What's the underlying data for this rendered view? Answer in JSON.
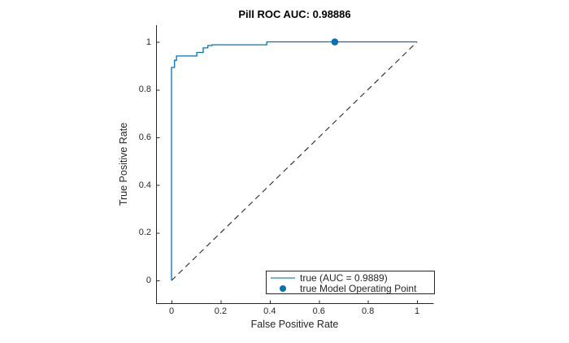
{
  "figure": {
    "background": "#ffffff"
  },
  "chart_data": {
    "type": "line",
    "subtype": "roc_curve",
    "title": "Pill ROC AUC: 0.98886",
    "xlabel": "False Positive Rate",
    "ylabel": "True Positive Rate",
    "xlim": [
      -0.063,
      1.066
    ],
    "ylim": [
      -0.095,
      1.07
    ],
    "grid": false,
    "axis_color": "#262626",
    "x_ticks": {
      "values": [
        0,
        0.2,
        0.4,
        0.6,
        0.8,
        1
      ],
      "labels": [
        "0",
        "0.2",
        "0.4",
        "0.6",
        "0.8",
        "1"
      ]
    },
    "y_ticks": {
      "values": [
        0,
        0.2,
        0.4,
        0.6,
        0.8,
        1
      ],
      "labels": [
        "0",
        "0.2",
        "0.4",
        "0.6",
        "0.8",
        "1"
      ]
    },
    "series": [
      {
        "name": "true (AUC = 0.9889)",
        "color": "#0072BD",
        "line_style": "solid",
        "auc": 0.9889,
        "points": [
          [
            0,
            0
          ],
          [
            0,
            0.893
          ],
          [
            0.012,
            0.893
          ],
          [
            0.012,
            0.923
          ],
          [
            0.02,
            0.923
          ],
          [
            0.02,
            0.941
          ],
          [
            0.103,
            0.941
          ],
          [
            0.103,
            0.956
          ],
          [
            0.129,
            0.956
          ],
          [
            0.129,
            0.975
          ],
          [
            0.148,
            0.975
          ],
          [
            0.148,
            0.985
          ],
          [
            0.165,
            0.985
          ],
          [
            0.165,
            0.988
          ],
          [
            0.388,
            0.988
          ],
          [
            0.388,
            1
          ],
          [
            1,
            1
          ]
        ]
      }
    ],
    "reference_line": {
      "name": "chance diagonal",
      "color": "#262626",
      "line_style": "dashed",
      "points": [
        [
          0,
          0
        ],
        [
          1,
          1
        ]
      ]
    },
    "operating_point": {
      "label": "true Model Operating Point",
      "x": 0.665,
      "y": 1,
      "color": "#0072BD",
      "marker": "circle"
    },
    "legend": {
      "position": "southeast",
      "border_color": "#262626"
    }
  }
}
